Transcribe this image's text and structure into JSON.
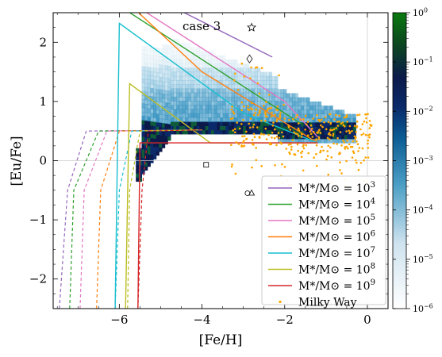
{
  "chart_data": {
    "type": "line",
    "annotation": "case 3",
    "xlabel": "[Fe/H]",
    "ylabel": "[Eu/Fe]",
    "xlim": [
      -7.6,
      0.5
    ],
    "ylim": [
      -2.5,
      2.5
    ],
    "xticks": [
      -6,
      -4,
      -2,
      0
    ],
    "xtick_labels": [
      "−6",
      "−4",
      "−2",
      "0"
    ],
    "yticks": [
      -2,
      -1,
      0,
      1,
      2
    ],
    "ytick_labels": [
      "−2",
      "−1",
      "0",
      "1",
      "2"
    ],
    "grid": "reference lines at x=0 and y=0",
    "legend_position": "lower-right",
    "colorbar": {
      "scale": "log",
      "range": [
        1e-06,
        1
      ],
      "colormap": "white-blue-green",
      "ticks": [
        1e-06,
        1e-05,
        0.0001,
        0.001,
        0.01,
        0.1,
        1
      ],
      "tick_labels": [
        "10^-6",
        "10^-5",
        "10^-4",
        "10^-3",
        "10^-2",
        "10^-1",
        "10^0"
      ]
    },
    "series": [
      {
        "name": "M*/M⊙ = 10^3",
        "color": "#9467bd",
        "solid": [
          [
            -7.2,
            2.5
          ],
          [
            -6.7,
            3.3
          ],
          [
            -2.3,
            1.75
          ]
        ],
        "dashed": [
          [
            -7.45,
            -2.5
          ],
          [
            -7.25,
            -0.5
          ],
          [
            -6.8,
            0.5
          ],
          [
            -4.0,
            0.52
          ]
        ]
      },
      {
        "name": "M*/M⊙ = 10^4",
        "color": "#2ca02c",
        "solid": [
          [
            -7.0,
            2.5
          ],
          [
            -6.85,
            3.0
          ],
          [
            -1.6,
            0.62
          ]
        ],
        "dashed": [
          [
            -7.2,
            -2.5
          ],
          [
            -7.1,
            -0.5
          ],
          [
            -6.5,
            0.5
          ],
          [
            -4.0,
            0.52
          ]
        ]
      },
      {
        "name": "M*/M⊙ = 10^5",
        "color": "#e377c2",
        "solid": [
          [
            -6.6,
            2.5
          ],
          [
            -6.45,
            3.0
          ],
          [
            -2.0,
            1.0
          ],
          [
            -1.2,
            0.4
          ]
        ],
        "dashed": [
          [
            -6.95,
            -2.5
          ],
          [
            -6.85,
            -0.5
          ],
          [
            -6.3,
            0.5
          ],
          [
            -4.0,
            0.52
          ]
        ]
      },
      {
        "name": "M*/M⊙ = 10^6",
        "color": "#ff7f0e",
        "solid": [
          [
            -6.4,
            2.5
          ],
          [
            -6.3,
            3.0
          ],
          [
            -4.0,
            1.5
          ],
          [
            -1.2,
            0.3
          ]
        ],
        "dashed": [
          [
            -6.55,
            -2.5
          ],
          [
            -6.45,
            -0.5
          ],
          [
            -6.0,
            0.5
          ],
          [
            -4.0,
            0.52
          ]
        ]
      },
      {
        "name": "M*/M⊙ = 10^7",
        "color": "#17becf",
        "solid": [
          [
            -6.1,
            -2.5
          ],
          [
            -6.0,
            2.32
          ],
          [
            -3.0,
            0.8
          ],
          [
            -1.2,
            0.3
          ]
        ],
        "dashed": [
          [
            -6.1,
            -2.5
          ],
          [
            -6.0,
            -0.5
          ],
          [
            -5.7,
            0.5
          ],
          [
            -4.0,
            0.52
          ]
        ]
      },
      {
        "name": "M*/M⊙ = 10^8",
        "color": "#bcbd22",
        "solid": [
          [
            -5.85,
            -2.5
          ],
          [
            -5.75,
            1.3
          ],
          [
            -3.8,
            0.3
          ],
          [
            -1.2,
            0.3
          ]
        ],
        "dashed": [
          [
            -5.8,
            -2.5
          ],
          [
            -5.75,
            -0.5
          ],
          [
            -5.5,
            0.5
          ],
          [
            -4.0,
            0.52
          ]
        ]
      },
      {
        "name": "M*/M⊙ = 10^9",
        "color": "#d62728",
        "solid": [
          [
            -5.55,
            -2.5
          ],
          [
            -5.5,
            0.3
          ],
          [
            -2.5,
            0.3
          ],
          [
            -1.2,
            0.3
          ]
        ],
        "dashed": [
          [
            -5.55,
            -2.5
          ],
          [
            -5.45,
            -0.5
          ],
          [
            -5.3,
            0.5
          ],
          [
            -4.0,
            0.52
          ]
        ]
      }
    ],
    "observations": {
      "name": "Milky Way",
      "color": "#ffa500",
      "type": "scatter"
    },
    "markers": [
      {
        "symbol": "star",
        "x": -2.8,
        "y": 2.25
      },
      {
        "symbol": "diamond",
        "x": -2.85,
        "y": 1.72
      },
      {
        "symbol": "square",
        "x": -3.9,
        "y": -0.07
      },
      {
        "symbol": "circle",
        "x": -2.9,
        "y": -0.55
      },
      {
        "symbol": "triangle",
        "x": -2.8,
        "y": -0.55
      }
    ]
  }
}
